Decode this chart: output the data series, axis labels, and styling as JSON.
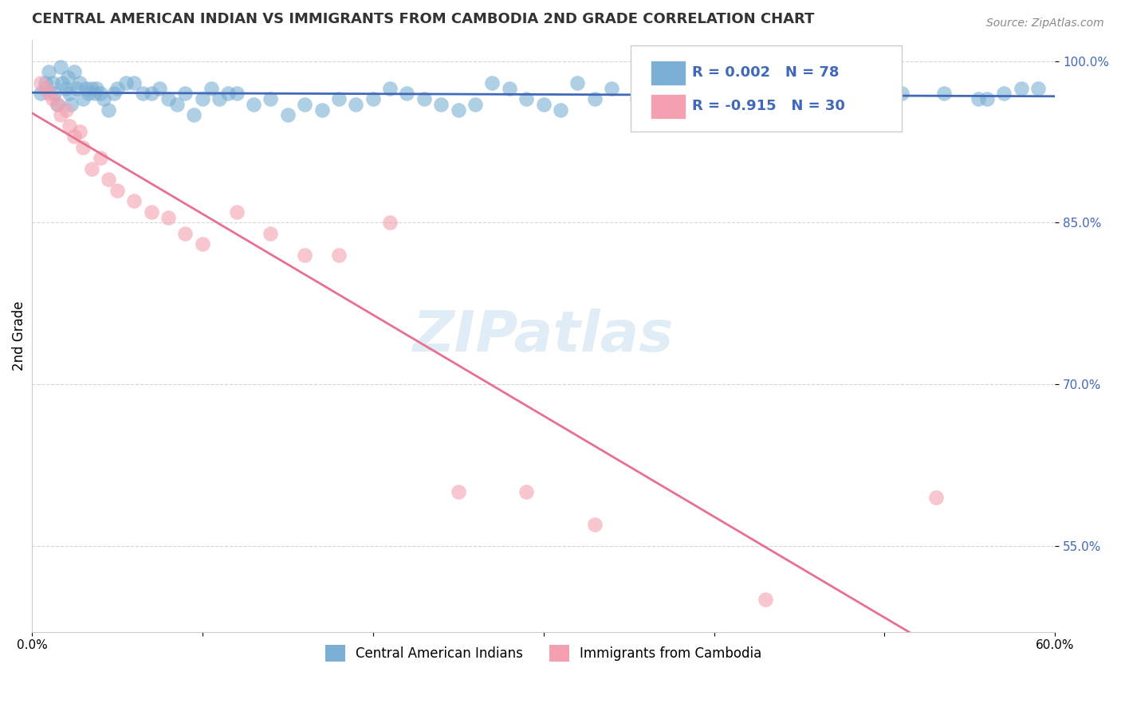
{
  "title": "CENTRAL AMERICAN INDIAN VS IMMIGRANTS FROM CAMBODIA 2ND GRADE CORRELATION CHART",
  "source": "Source: ZipAtlas.com",
  "ylabel": "2nd Grade",
  "xlim": [
    0.0,
    0.6
  ],
  "ylim": [
    0.47,
    1.02
  ],
  "x_ticks": [
    0.0,
    0.1,
    0.2,
    0.3,
    0.4,
    0.5,
    0.6
  ],
  "x_tick_labels": [
    "0.0%",
    "",
    "",
    "",
    "",
    "",
    "60.0%"
  ],
  "y_ticks": [
    0.55,
    0.7,
    0.85,
    1.0
  ],
  "y_tick_labels": [
    "55.0%",
    "70.0%",
    "85.0%",
    "100.0%"
  ],
  "grid_color": "#cccccc",
  "background_color": "#ffffff",
  "blue_color": "#7bafd4",
  "pink_color": "#f4a0b0",
  "trend_blue_color": "#4169b8",
  "trend_pink_color": "#e87090",
  "R_blue": 0.002,
  "N_blue": 78,
  "R_pink": -0.915,
  "N_pink": 30,
  "legend_label_blue": "Central American Indians",
  "legend_label_pink": "Immigrants from Cambodia",
  "watermark": "ZIPatlas",
  "blue_x": [
    0.005,
    0.008,
    0.01,
    0.012,
    0.013,
    0.015,
    0.017,
    0.018,
    0.02,
    0.021,
    0.022,
    0.023,
    0.025,
    0.026,
    0.028,
    0.03,
    0.032,
    0.033,
    0.035,
    0.037,
    0.038,
    0.04,
    0.042,
    0.045,
    0.048,
    0.05,
    0.055,
    0.06,
    0.065,
    0.07,
    0.075,
    0.08,
    0.085,
    0.09,
    0.095,
    0.1,
    0.105,
    0.11,
    0.115,
    0.12,
    0.13,
    0.14,
    0.15,
    0.16,
    0.17,
    0.18,
    0.19,
    0.2,
    0.21,
    0.22,
    0.23,
    0.24,
    0.25,
    0.26,
    0.27,
    0.28,
    0.29,
    0.3,
    0.31,
    0.32,
    0.33,
    0.34,
    0.355,
    0.37,
    0.385,
    0.4,
    0.415,
    0.43,
    0.45,
    0.47,
    0.49,
    0.51,
    0.535,
    0.555,
    0.56,
    0.57,
    0.58,
    0.59
  ],
  "blue_y": [
    0.97,
    0.98,
    0.99,
    0.98,
    0.97,
    0.96,
    0.995,
    0.98,
    0.975,
    0.985,
    0.97,
    0.96,
    0.99,
    0.975,
    0.98,
    0.965,
    0.975,
    0.97,
    0.975,
    0.97,
    0.975,
    0.97,
    0.965,
    0.955,
    0.97,
    0.975,
    0.98,
    0.98,
    0.97,
    0.97,
    0.975,
    0.965,
    0.96,
    0.97,
    0.95,
    0.965,
    0.975,
    0.965,
    0.97,
    0.97,
    0.96,
    0.965,
    0.95,
    0.96,
    0.955,
    0.965,
    0.96,
    0.965,
    0.975,
    0.97,
    0.965,
    0.96,
    0.955,
    0.96,
    0.98,
    0.975,
    0.965,
    0.96,
    0.955,
    0.98,
    0.965,
    0.975,
    0.965,
    0.97,
    0.97,
    0.975,
    0.97,
    0.975,
    0.97,
    0.975,
    0.975,
    0.97,
    0.97,
    0.965,
    0.965,
    0.97,
    0.975,
    0.975
  ],
  "pink_x": [
    0.005,
    0.008,
    0.01,
    0.012,
    0.015,
    0.017,
    0.02,
    0.022,
    0.025,
    0.028,
    0.03,
    0.035,
    0.04,
    0.045,
    0.05,
    0.06,
    0.07,
    0.08,
    0.09,
    0.1,
    0.12,
    0.14,
    0.16,
    0.18,
    0.21,
    0.25,
    0.29,
    0.33,
    0.43,
    0.53
  ],
  "pink_y": [
    0.98,
    0.975,
    0.97,
    0.965,
    0.96,
    0.95,
    0.955,
    0.94,
    0.93,
    0.935,
    0.92,
    0.9,
    0.91,
    0.89,
    0.88,
    0.87,
    0.86,
    0.855,
    0.84,
    0.83,
    0.86,
    0.84,
    0.82,
    0.82,
    0.85,
    0.6,
    0.6,
    0.57,
    0.5,
    0.595
  ]
}
